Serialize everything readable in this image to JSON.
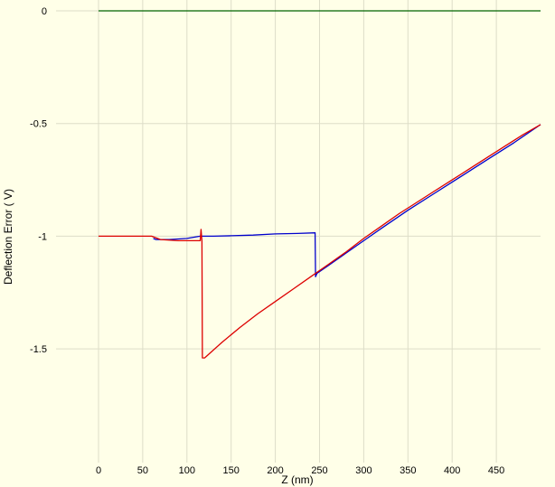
{
  "chart_data": {
    "type": "line",
    "title": "",
    "xlabel": "Z (nm)",
    "ylabel": "Deflection Error ( V)",
    "xlim": [
      -48,
      500
    ],
    "ylim": [
      -2.0,
      0.0
    ],
    "x_ticks": [
      "0",
      "50",
      "100",
      "150",
      "200",
      "250",
      "300",
      "350",
      "400",
      "450"
    ],
    "y_ticks": [
      "0",
      "-0.5",
      "-1",
      "-1.5"
    ],
    "grid": true,
    "legend": "none",
    "series": [
      {
        "color": "#006400",
        "points": [
          [
            0,
            0
          ],
          [
            500,
            0
          ]
        ]
      },
      {
        "color": "#0000cc",
        "points": [
          [
            62,
            -1.01
          ],
          [
            65,
            -1.015
          ],
          [
            80,
            -1.015
          ],
          [
            100,
            -1.01
          ],
          [
            115,
            -1.0
          ],
          [
            130,
            -1.0
          ],
          [
            150,
            -0.998
          ],
          [
            175,
            -0.995
          ],
          [
            200,
            -0.99
          ],
          [
            225,
            -0.988
          ],
          [
            245,
            -0.985
          ],
          [
            245.5,
            -1.18
          ],
          [
            247,
            -1.165
          ],
          [
            260,
            -1.13
          ],
          [
            280,
            -1.075
          ],
          [
            300,
            -1.02
          ],
          [
            320,
            -0.965
          ],
          [
            350,
            -0.885
          ],
          [
            380,
            -0.81
          ],
          [
            410,
            -0.735
          ],
          [
            440,
            -0.66
          ],
          [
            470,
            -0.585
          ],
          [
            500,
            -0.505
          ]
        ]
      },
      {
        "color": "#dd0000",
        "points": [
          [
            0,
            -1.0
          ],
          [
            60,
            -1.0
          ],
          [
            70,
            -1.015
          ],
          [
            90,
            -1.02
          ],
          [
            110,
            -1.02
          ],
          [
            115,
            -1.02
          ],
          [
            116,
            -0.97
          ],
          [
            117,
            -1.02
          ],
          [
            117.5,
            -1.54
          ],
          [
            120,
            -1.54
          ],
          [
            140,
            -1.47
          ],
          [
            160,
            -1.405
          ],
          [
            180,
            -1.345
          ],
          [
            200,
            -1.29
          ],
          [
            220,
            -1.235
          ],
          [
            240,
            -1.18
          ],
          [
            260,
            -1.125
          ],
          [
            280,
            -1.07
          ],
          [
            300,
            -1.01
          ],
          [
            320,
            -0.955
          ],
          [
            340,
            -0.9
          ],
          [
            360,
            -0.85
          ],
          [
            380,
            -0.8
          ],
          [
            400,
            -0.75
          ],
          [
            420,
            -0.7
          ],
          [
            440,
            -0.65
          ],
          [
            460,
            -0.6
          ],
          [
            480,
            -0.55
          ],
          [
            500,
            -0.505
          ]
        ]
      }
    ]
  }
}
